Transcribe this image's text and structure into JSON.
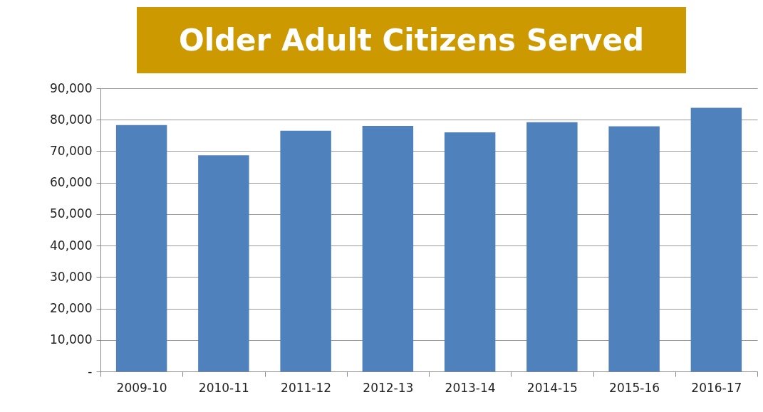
{
  "chart_data": {
    "type": "bar",
    "title": "Older Adult Citizens Served",
    "categories": [
      "2009-10",
      "2010-11",
      "2011-12",
      "2012-13",
      "2013-14",
      "2014-15",
      "2015-16",
      "2016-17"
    ],
    "values": [
      78300,
      68700,
      76500,
      78000,
      76000,
      79200,
      77900,
      83800
    ],
    "color": "#4f81bd",
    "ylim": [
      0,
      90000
    ],
    "yticks": [
      {
        "value": 0,
        "label": "-"
      },
      {
        "value": 10000,
        "label": "10,000"
      },
      {
        "value": 20000,
        "label": "20,000"
      },
      {
        "value": 30000,
        "label": "30,000"
      },
      {
        "value": 40000,
        "label": "40,000"
      },
      {
        "value": 50000,
        "label": "50,000"
      },
      {
        "value": 60000,
        "label": "60,000"
      },
      {
        "value": 70000,
        "label": "70,000"
      },
      {
        "value": 80000,
        "label": "80,000"
      },
      {
        "value": 90000,
        "label": "90,000"
      }
    ],
    "grid": "y"
  }
}
